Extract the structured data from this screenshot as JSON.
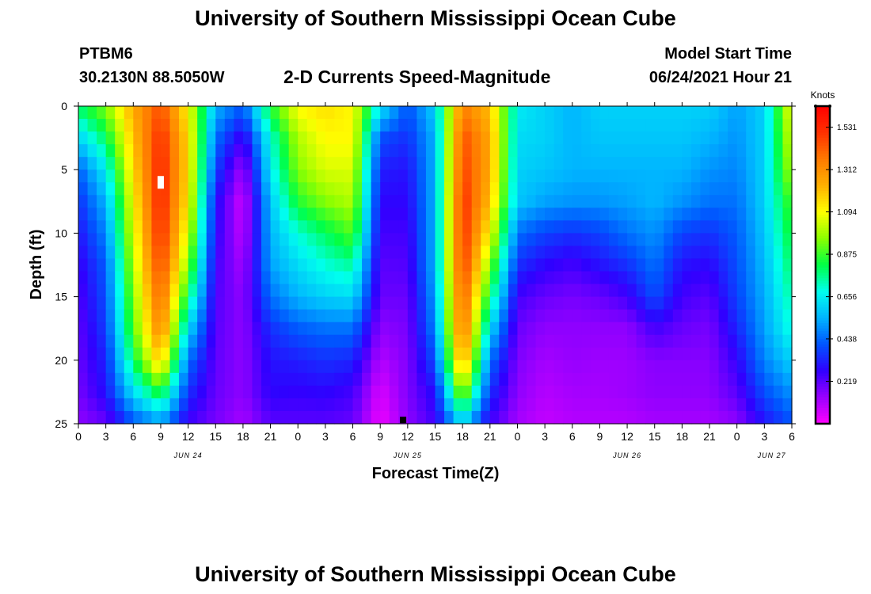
{
  "header": {
    "title": "University of Southern Mississippi Ocean Cube",
    "station": "PTBM6",
    "coords": "30.2130N  88.5050W",
    "subtitle": "2-D Currents Speed-Magnitude",
    "model_label": "Model Start Time",
    "model_time": "06/24/2021 Hour 21",
    "footer_title": "University of Southern Mississippi Ocean Cube"
  },
  "chart_data": {
    "type": "heatmap",
    "title": "2-D Currents Speed-Magnitude",
    "xlabel": "Forecast Time(Z)",
    "ylabel": "Depth (ft)",
    "x_tick_labels": [
      "0",
      "3",
      "6",
      "9",
      "12",
      "15",
      "18",
      "21",
      "0",
      "3",
      "6",
      "9",
      "12",
      "15",
      "18",
      "21",
      "0",
      "3",
      "6",
      "9",
      "12",
      "15",
      "18",
      "21",
      "0",
      "3",
      "6"
    ],
    "date_labels": [
      "JUN 24",
      "JUN 25",
      "JUN 26",
      "JUN 27"
    ],
    "x_range_hours": [
      0,
      78
    ],
    "y_tick_labels": [
      "0",
      "5",
      "10",
      "15",
      "20",
      "25"
    ],
    "ylim": [
      0,
      25
    ],
    "y_inverted": true,
    "colorbar": {
      "unit": "Knots",
      "tick_labels": [
        "1.531",
        "1.312",
        "1.094",
        "0.875",
        "0.656",
        "0.438",
        "0.219"
      ],
      "tick_values": [
        1.531,
        1.312,
        1.094,
        0.875,
        0.656,
        0.438,
        0.219
      ],
      "range": [
        0.0,
        1.64
      ],
      "colors": [
        "#ff00ff",
        "#9900ff",
        "#3000ff",
        "#0055ff",
        "#00b4ff",
        "#00ffee",
        "#00ff44",
        "#8cff00",
        "#ffff00",
        "#ffb000",
        "#ff7a00",
        "#ff3000",
        "#ff0000"
      ]
    },
    "depth_levels_ft": [
      0,
      2.5,
      5,
      7.5,
      10,
      12.5,
      15,
      17.5,
      20,
      22.5,
      25
    ],
    "speed_profiles_by_hour": [
      {
        "hour": 0,
        "knots": [
          0.8,
          0.6,
          0.42,
          0.35,
          0.3,
          0.26,
          0.23,
          0.21,
          0.2,
          0.18,
          0.15
        ]
      },
      {
        "hour": 3,
        "knots": [
          0.95,
          0.8,
          0.65,
          0.55,
          0.48,
          0.42,
          0.4,
          0.37,
          0.33,
          0.3,
          0.2
        ]
      },
      {
        "hour": 6,
        "knots": [
          1.25,
          1.2,
          1.15,
          1.1,
          1.05,
          1.0,
          0.95,
          0.9,
          0.8,
          0.62,
          0.4
        ]
      },
      {
        "hour": 9,
        "knots": [
          1.45,
          1.52,
          1.55,
          1.55,
          1.53,
          1.48,
          1.42,
          1.35,
          1.2,
          0.85,
          0.5
        ]
      },
      {
        "hour": 12,
        "knots": [
          1.1,
          1.15,
          1.15,
          1.12,
          1.05,
          0.95,
          0.8,
          0.62,
          0.45,
          0.35,
          0.25
        ]
      },
      {
        "hour": 15,
        "knots": [
          0.55,
          0.45,
          0.38,
          0.3,
          0.28,
          0.25,
          0.23,
          0.22,
          0.21,
          0.2,
          0.18
        ]
      },
      {
        "hour": 18,
        "knots": [
          0.42,
          0.25,
          0.12,
          0.06,
          0.08,
          0.12,
          0.15,
          0.15,
          0.15,
          0.15,
          0.12
        ]
      },
      {
        "hour": 21,
        "knots": [
          0.85,
          0.7,
          0.65,
          0.58,
          0.55,
          0.52,
          0.45,
          0.35,
          0.3,
          0.28,
          0.22
        ]
      },
      {
        "hour": 24,
        "knots": [
          1.1,
          1.0,
          0.95,
          0.85,
          0.7,
          0.62,
          0.55,
          0.42,
          0.32,
          0.27,
          0.22
        ]
      },
      {
        "hour": 27,
        "knots": [
          1.15,
          1.1,
          1.05,
          0.95,
          0.8,
          0.7,
          0.6,
          0.45,
          0.35,
          0.28,
          0.22
        ]
      },
      {
        "hour": 30,
        "knots": [
          1.1,
          1.1,
          1.05,
          1.0,
          0.9,
          0.75,
          0.62,
          0.45,
          0.33,
          0.25,
          0.2
        ]
      },
      {
        "hour": 33,
        "knots": [
          0.65,
          0.4,
          0.32,
          0.28,
          0.25,
          0.22,
          0.2,
          0.15,
          0.1,
          0.05,
          0.02
        ]
      },
      {
        "hour": 36,
        "knots": [
          0.4,
          0.35,
          0.3,
          0.28,
          0.25,
          0.23,
          0.2,
          0.18,
          0.17,
          0.17,
          0.15
        ]
      },
      {
        "hour": 39,
        "knots": [
          0.6,
          0.55,
          0.55,
          0.55,
          0.55,
          0.55,
          0.52,
          0.48,
          0.4,
          0.3,
          0.25
        ]
      },
      {
        "hour": 42,
        "knots": [
          1.35,
          1.45,
          1.48,
          1.52,
          1.52,
          1.5,
          1.45,
          1.4,
          1.3,
          1.0,
          0.6
        ]
      },
      {
        "hour": 45,
        "knots": [
          1.2,
          1.25,
          1.25,
          1.2,
          1.1,
          0.95,
          0.8,
          0.62,
          0.45,
          0.35,
          0.25
        ]
      },
      {
        "hour": 48,
        "knots": [
          0.65,
          0.62,
          0.6,
          0.58,
          0.45,
          0.35,
          0.25,
          0.2,
          0.17,
          0.15,
          0.12
        ]
      },
      {
        "hour": 51,
        "knots": [
          0.6,
          0.6,
          0.58,
          0.52,
          0.38,
          0.28,
          0.2,
          0.15,
          0.12,
          0.1,
          0.08
        ]
      },
      {
        "hour": 54,
        "knots": [
          0.55,
          0.55,
          0.55,
          0.5,
          0.35,
          0.25,
          0.18,
          0.15,
          0.14,
          0.12,
          0.1
        ]
      },
      {
        "hour": 57,
        "knots": [
          0.6,
          0.58,
          0.55,
          0.5,
          0.38,
          0.3,
          0.2,
          0.15,
          0.13,
          0.12,
          0.1
        ]
      },
      {
        "hour": 60,
        "knots": [
          0.6,
          0.58,
          0.55,
          0.52,
          0.45,
          0.35,
          0.25,
          0.15,
          0.13,
          0.13,
          0.1
        ]
      },
      {
        "hour": 63,
        "knots": [
          0.6,
          0.58,
          0.55,
          0.55,
          0.5,
          0.45,
          0.4,
          0.25,
          0.16,
          0.15,
          0.12
        ]
      },
      {
        "hour": 66,
        "knots": [
          0.6,
          0.58,
          0.55,
          0.5,
          0.38,
          0.3,
          0.25,
          0.2,
          0.16,
          0.15,
          0.12
        ]
      },
      {
        "hour": 69,
        "knots": [
          0.6,
          0.55,
          0.5,
          0.45,
          0.35,
          0.28,
          0.22,
          0.18,
          0.16,
          0.15,
          0.12
        ]
      },
      {
        "hour": 72,
        "knots": [
          0.52,
          0.5,
          0.48,
          0.45,
          0.42,
          0.4,
          0.38,
          0.33,
          0.27,
          0.22,
          0.15
        ]
      },
      {
        "hour": 75,
        "knots": [
          0.6,
          0.6,
          0.6,
          0.6,
          0.58,
          0.56,
          0.54,
          0.52,
          0.48,
          0.4,
          0.3
        ]
      },
      {
        "hour": 78,
        "knots": [
          1.1,
          1.05,
          1.0,
          0.9,
          0.85,
          0.8,
          0.75,
          0.7,
          0.6,
          0.5,
          0.4
        ]
      }
    ],
    "markers": [
      {
        "hour": 9,
        "depth_ft": 6,
        "color": "#ffffff"
      },
      {
        "hour": 35.5,
        "depth_ft": 24.7,
        "color": "#000000"
      }
    ]
  }
}
